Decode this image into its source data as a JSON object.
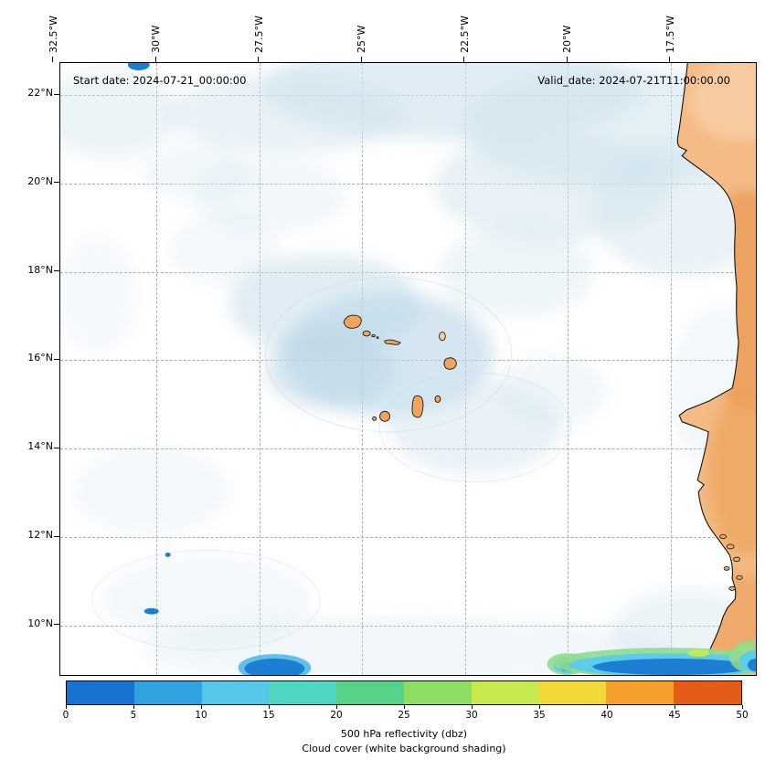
{
  "header": {
    "start_date": "Start date: 2024-07-21_00:00:00",
    "valid_date": "Valid_date: 2024-07-21T11:00:00.00"
  },
  "axes": {
    "x_tick_labels": [
      "32.5°W",
      "30°W",
      "27.5°W",
      "25°W",
      "22.5°W",
      "20°W",
      "17.5°W"
    ],
    "y_tick_labels": [
      "22°N",
      "20°N",
      "18°N",
      "16°N",
      "14°N",
      "12°N",
      "10°N"
    ]
  },
  "colorbar": {
    "tick_labels": [
      "0",
      "5",
      "10",
      "15",
      "20",
      "25",
      "30",
      "35",
      "40",
      "45",
      "50"
    ],
    "segment_colors": [
      "#1873cf",
      "#30a2e0",
      "#57c7e9",
      "#4ed6c3",
      "#56d289",
      "#90dd65",
      "#c8ea4e",
      "#f2d939",
      "#f4a02b",
      "#e55c17"
    ],
    "title": "500 hPa reflectivity (dbz)",
    "subtitle": "Cloud cover (white background shading)"
  },
  "map_colors": {
    "cloud_shading": "#cfe3ee",
    "cloud_dense": "#b9d5e6",
    "land": "#f4bb85",
    "land_dark": "#ea9a54",
    "reflectivity_blue": "#1d7fd4",
    "reflectivity_cyan": "#5ccde8",
    "reflectivity_green": "#8fdc8f",
    "reflectivity_yellow": "#cdea4f"
  }
}
